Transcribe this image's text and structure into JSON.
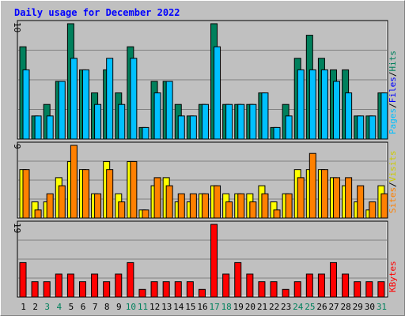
{
  "chart_data": {
    "type": "bar",
    "title": "Daily usage for December 2022",
    "categories": [
      "1",
      "2",
      "3",
      "4",
      "5",
      "6",
      "7",
      "8",
      "9",
      "10",
      "11",
      "12",
      "13",
      "14",
      "15",
      "16",
      "17",
      "18",
      "19",
      "20",
      "21",
      "22",
      "23",
      "24",
      "25",
      "26",
      "27",
      "28",
      "29",
      "30",
      "31"
    ],
    "weekend_days": [
      "3",
      "4",
      "10",
      "11",
      "17",
      "18",
      "24",
      "25",
      "31"
    ],
    "panels": [
      {
        "name": "hits-files-pages",
        "max_label": "10",
        "ymax": 10,
        "right_labels": [
          "Pages",
          "Files",
          "Hits"
        ],
        "series": [
          {
            "name": "Hits",
            "color": "#00805c",
            "values": [
              8,
              2,
              3,
              5,
              10,
              6,
              4,
              6,
              4,
              8,
              1,
              5,
              5,
              3,
              2,
              3,
              10,
              3,
              3,
              3,
              4,
              1,
              3,
              7,
              9,
              7,
              6,
              6,
              2,
              2,
              4
            ]
          },
          {
            "name": "Files",
            "color": "#00c0ff",
            "values": [
              6,
              2,
              2,
              5,
              7,
              6,
              3,
              7,
              3,
              7,
              1,
              4,
              5,
              2,
              2,
              3,
              8,
              3,
              3,
              3,
              4,
              1,
              2,
              6,
              6,
              6,
              5,
              4,
              2,
              2,
              4
            ]
          }
        ]
      },
      {
        "name": "visits-sites",
        "max_label": "9",
        "ymax": 9,
        "right_labels": [
          "Sites",
          "Visits"
        ],
        "series": [
          {
            "name": "Visits",
            "color": "#ffff00",
            "values": [
              6,
              2,
              2,
              5,
              7,
              6,
              3,
              7,
              3,
              7,
              1,
              4,
              5,
              2,
              2,
              3,
              4,
              3,
              3,
              3,
              4,
              2,
              3,
              6,
              6,
              6,
              5,
              4,
              2,
              1,
              4
            ]
          },
          {
            "name": "Sites",
            "color": "#ff8000",
            "values": [
              6,
              1,
              3,
              4,
              9,
              6,
              3,
              6,
              2,
              7,
              1,
              5,
              4,
              3,
              3,
              3,
              4,
              2,
              3,
              2,
              3,
              1,
              3,
              5,
              8,
              6,
              5,
              5,
              4,
              2,
              3
            ]
          }
        ]
      },
      {
        "name": "kbytes",
        "max_label": "19",
        "ymax": 19,
        "right_labels": [
          "KBytes"
        ],
        "series": [
          {
            "name": "KBytes",
            "color": "#ff0000",
            "values": [
              9,
              4,
              4,
              6,
              6,
              4,
              6,
              4,
              6,
              9,
              2,
              4,
              4,
              4,
              4,
              2,
              19,
              6,
              9,
              6,
              4,
              4,
              2,
              4,
              6,
              6,
              9,
              6,
              4,
              4,
              4
            ]
          }
        ]
      }
    ]
  },
  "colors": {
    "background": "#c0c0c0",
    "title": "#0000ff",
    "weekday_label": "#000000",
    "weekend_label": "#00805c",
    "grid": "#808080"
  }
}
